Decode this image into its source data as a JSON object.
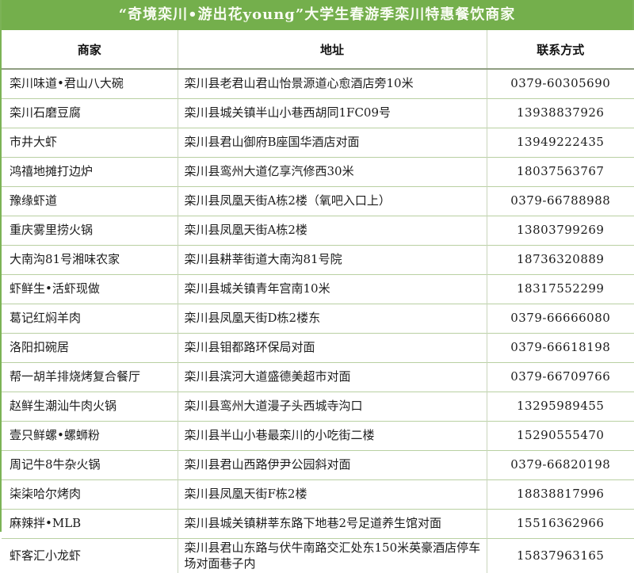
{
  "title": "“奇境栾川•游出花young”大学生春游季栾川特惠餐饮商家",
  "columns": [
    "商家",
    "地址",
    "联系方式"
  ],
  "rows": [
    {
      "name": "栾川味道•君山八大碗",
      "address": "栾川县老君山君山怡景源道心愈酒店旁10米",
      "phone": "0379-60305690"
    },
    {
      "name": "栾川石磨豆腐",
      "address": "栾川县城关镇半山小巷西胡同1FC09号",
      "phone": "13938837926"
    },
    {
      "name": "市井大虾",
      "address": "栾川县君山御府B座国华酒店对面",
      "phone": "13949222435"
    },
    {
      "name": "鸿禧地摊打边炉",
      "address": "栾川县鸾州大道亿享汽修西30米",
      "phone": "18037563767"
    },
    {
      "name": "豫缘虾道",
      "address": "栾川县凤凰天街A栋2楼（氧吧入口上）",
      "phone": "0379-66788988"
    },
    {
      "name": "重庆雾里捞火锅",
      "address": "栾川县凤凰天街A栋2楼",
      "phone": "13803799269"
    },
    {
      "name": "大南沟81号湘味农家",
      "address": "栾川县耕莘街道大南沟81号院",
      "phone": "18736320889"
    },
    {
      "name": "虾鲜生•活虾现做",
      "address": "栾川县城关镇青年宫南10米",
      "phone": "18317552299"
    },
    {
      "name": "葛记红焖羊肉",
      "address": "栾川县凤凰天街D栋2楼东",
      "phone": "0379-66666080"
    },
    {
      "name": "洛阳扣碗居",
      "address": "栾川县钼都路环保局对面",
      "phone": "0379-66618198"
    },
    {
      "name": "帮一胡羊排烧烤复合餐厅",
      "address": "栾川县滨河大道盛德美超市对面",
      "phone": "0379-66709766"
    },
    {
      "name": "赵鲜生潮汕牛肉火锅",
      "address": "栾川县鸾州大道漫子头西城寺沟口",
      "phone": "13295989455"
    },
    {
      "name": "壹只鲜螺•螺蛳粉",
      "address": "栾川县半山小巷最栾川的小吃街二楼",
      "phone": "15290555470"
    },
    {
      "name": "周记牛8牛杂火锅",
      "address": "栾川县君山西路伊尹公园斜对面",
      "phone": "0379-66820198"
    },
    {
      "name": "柒柒哈尔烤肉",
      "address": "栾川县凤凰天街F栋2楼",
      "phone": "18838817996"
    },
    {
      "name": "麻辣拌•MLB",
      "address": "栾川县城关镇耕莘东路下地巷2号足道养生馆对面",
      "phone": "15516362966"
    },
    {
      "name": "虾客汇小龙虾",
      "address": "栾川县君山东路与伏牛南路交汇处东150米英豪酒店停车场对面巷子内",
      "phone": "15837963165"
    }
  ],
  "colors": {
    "header_green": "#74af4c",
    "outer_border": "#7cb356",
    "row_border": "#b9d0a2",
    "column_border": "#c9d6bd",
    "header_separator": "#8f9e82",
    "title_text": "#f9fcf3",
    "cell_text": "#1c1c1c"
  }
}
